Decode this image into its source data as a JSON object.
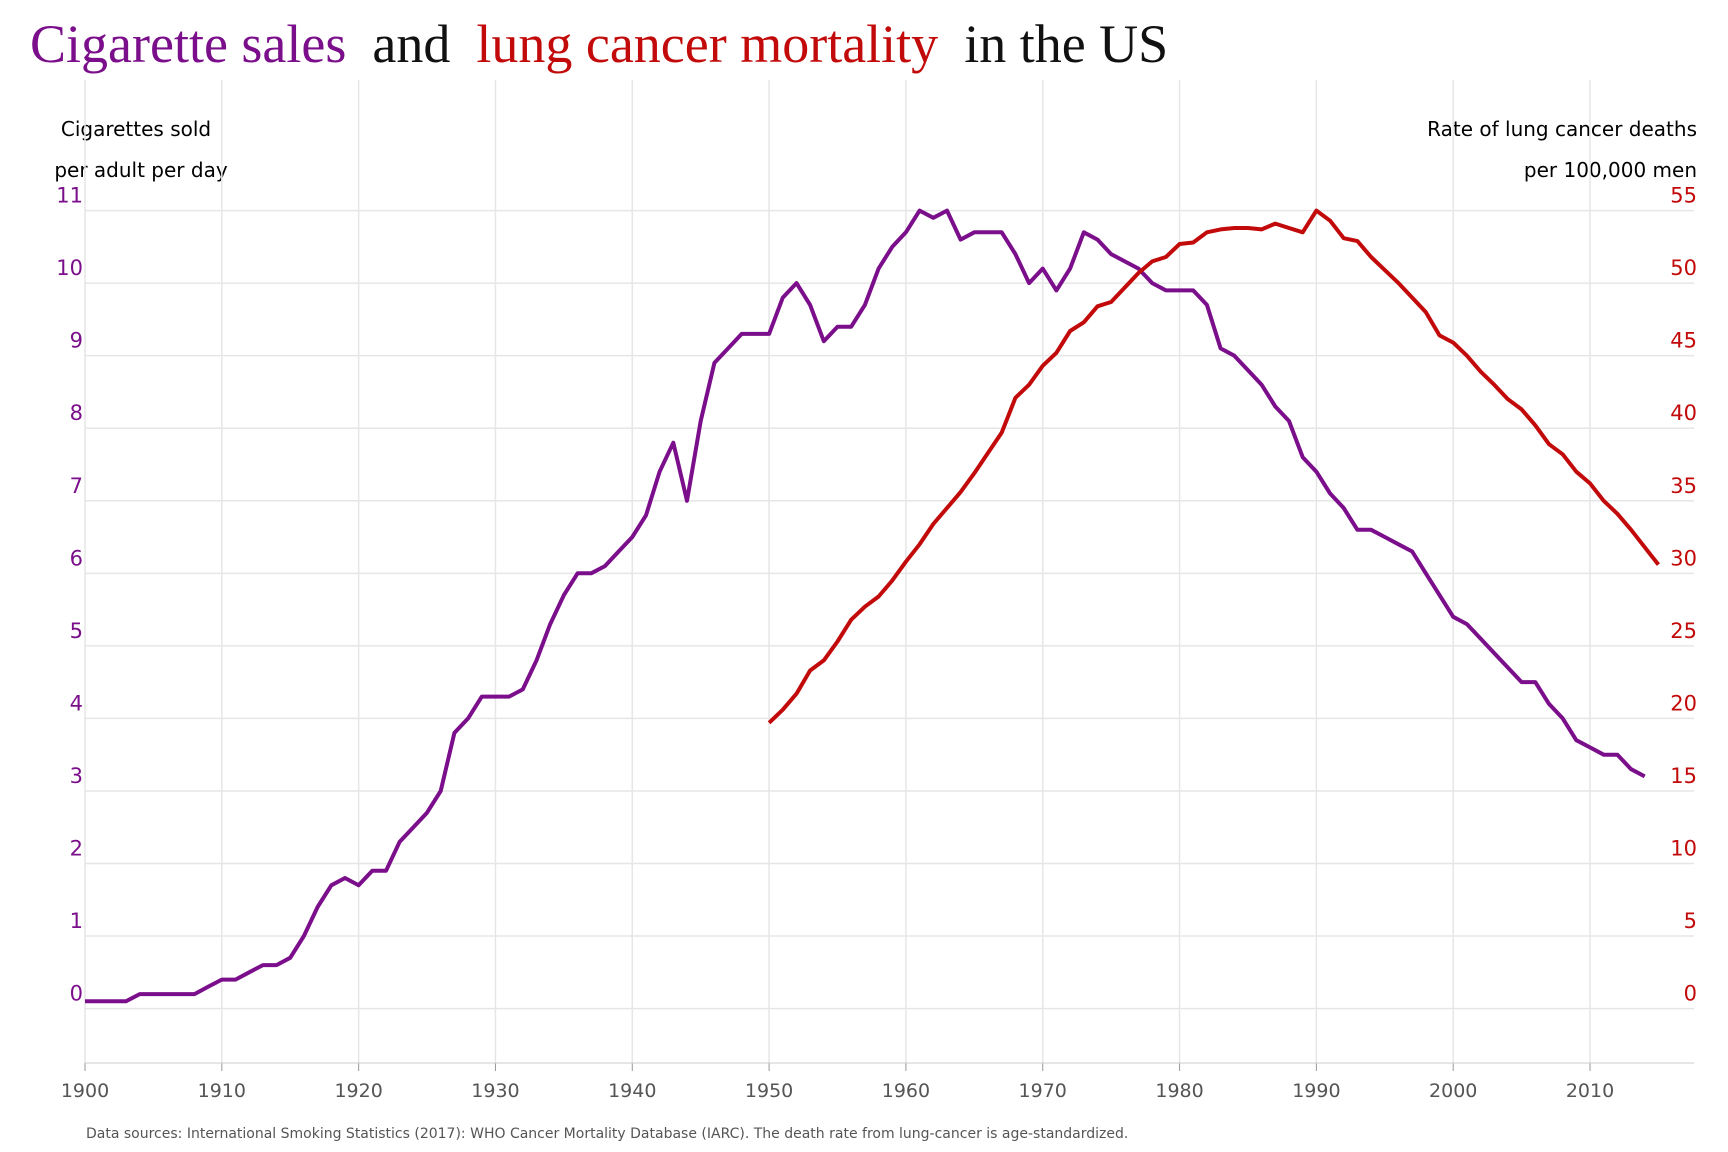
{
  "chart_data": {
    "type": "line",
    "title_parts": [
      {
        "text": "Cigarette sales",
        "color": "#7b0e8a"
      },
      {
        "text": "and",
        "color": "#111111"
      },
      {
        "text": "lung cancer mortality",
        "color": "#c20a0a"
      },
      {
        "text": "in the US",
        "color": "#111111"
      }
    ],
    "y_label": [
      "Cigarettes sold",
      "per adult per day"
    ],
    "y2_label": [
      "Rate of lung cancer deaths",
      "per 100,000 men"
    ],
    "note": "Data sources: International Smoking Statistics (2017): WHO Cancer Mortality Database (IARC). The death rate from lung-cancer is age-standardized.",
    "xlim": [
      1900,
      2017.6
    ],
    "xticks": [
      1900,
      1910,
      1920,
      1930,
      1940,
      1950,
      1960,
      1970,
      1980,
      1990,
      2000,
      2010
    ],
    "ylim": [
      -0.75,
      12.8
    ],
    "yticks": [
      0,
      1,
      2,
      3,
      4,
      5,
      6,
      7,
      8,
      9,
      10,
      11
    ],
    "y2lim": [
      -3.75,
      64
    ],
    "y2ticks": [
      0,
      5,
      10,
      15,
      20,
      25,
      30,
      35,
      40,
      45,
      50,
      55
    ],
    "grid": true,
    "series": [
      {
        "name": "Cigarette sales",
        "color": "#7b0e8a",
        "axis": "y",
        "x": [
          1900,
          1901,
          1902,
          1903,
          1904,
          1905,
          1906,
          1907,
          1908,
          1909,
          1910,
          1911,
          1912,
          1913,
          1914,
          1915,
          1916,
          1917,
          1918,
          1919,
          1920,
          1921,
          1922,
          1923,
          1924,
          1925,
          1926,
          1927,
          1928,
          1929,
          1930,
          1931,
          1932,
          1933,
          1934,
          1935,
          1936,
          1937,
          1938,
          1939,
          1940,
          1941,
          1942,
          1943,
          1944,
          1945,
          1946,
          1947,
          1948,
          1949,
          1950,
          1951,
          1952,
          1953,
          1954,
          1955,
          1956,
          1957,
          1958,
          1959,
          1960,
          1961,
          1962,
          1963,
          1964,
          1965,
          1966,
          1967,
          1968,
          1969,
          1970,
          1971,
          1972,
          1973,
          1974,
          1975,
          1976,
          1977,
          1978,
          1979,
          1980,
          1981,
          1982,
          1983,
          1984,
          1985,
          1986,
          1987,
          1988,
          1989,
          1990,
          1991,
          1992,
          1993,
          1994,
          1995,
          1996,
          1997,
          1998,
          1999,
          2000,
          2001,
          2002,
          2003,
          2004,
          2005,
          2006,
          2007,
          2008,
          2009,
          2010,
          2011,
          2012,
          2013,
          2014
        ],
        "values": [
          0.1,
          0.1,
          0.1,
          0.1,
          0.2,
          0.2,
          0.2,
          0.2,
          0.2,
          0.3,
          0.4,
          0.4,
          0.5,
          0.6,
          0.6,
          0.7,
          1.0,
          1.4,
          1.7,
          1.8,
          1.7,
          1.9,
          1.9,
          2.3,
          2.5,
          2.7,
          3.0,
          3.8,
          4.0,
          4.3,
          4.3,
          4.3,
          4.4,
          4.8,
          5.3,
          5.7,
          6.0,
          6.0,
          6.1,
          6.3,
          6.5,
          6.8,
          7.4,
          7.8,
          7.0,
          8.1,
          8.9,
          9.1,
          9.3,
          9.3,
          9.3,
          9.8,
          10.0,
          9.7,
          9.2,
          9.4,
          9.4,
          9.7,
          10.2,
          10.5,
          10.7,
          11.0,
          10.9,
          11.0,
          10.6,
          10.7,
          10.7,
          10.7,
          10.4,
          10.0,
          10.2,
          9.9,
          10.2,
          10.7,
          10.6,
          10.4,
          10.3,
          10.2,
          10.0,
          9.9,
          9.9,
          9.9,
          9.7,
          9.1,
          9.0,
          8.8,
          8.6,
          8.3,
          8.1,
          7.6,
          7.4,
          7.1,
          6.9,
          6.6,
          6.6,
          6.5,
          6.4,
          6.3,
          6.0,
          5.7,
          5.4,
          5.3,
          5.1,
          4.9,
          4.7,
          4.5,
          4.5,
          4.2,
          4.0,
          3.7,
          3.6,
          3.5,
          3.5,
          3.3,
          3.2
        ]
      },
      {
        "name": "Lung cancer mortality",
        "color": "#c20a0a",
        "axis": "y2",
        "x": [
          1950,
          1951,
          1952,
          1953,
          1954,
          1955,
          1956,
          1957,
          1958,
          1959,
          1960,
          1961,
          1962,
          1963,
          1964,
          1965,
          1966,
          1967,
          1968,
          1969,
          1970,
          1971,
          1972,
          1973,
          1974,
          1975,
          1976,
          1977,
          1978,
          1979,
          1980,
          1981,
          1982,
          1983,
          1984,
          1985,
          1986,
          1987,
          1988,
          1989,
          1990,
          1991,
          1992,
          1993,
          1994,
          1995,
          1996,
          1997,
          1998,
          1999,
          2000,
          2001,
          2002,
          2003,
          2004,
          2005,
          2006,
          2007,
          2008,
          2009,
          2010,
          2011,
          2012,
          2013,
          2014,
          2015
        ],
        "values": [
          19.7,
          20.6,
          21.7,
          23.3,
          24.0,
          25.3,
          26.8,
          27.7,
          28.4,
          29.5,
          30.8,
          32.0,
          33.4,
          34.5,
          35.6,
          36.9,
          38.3,
          39.7,
          42.1,
          43.0,
          44.3,
          45.2,
          46.7,
          47.3,
          48.4,
          48.7,
          49.7,
          50.7,
          51.5,
          51.8,
          52.7,
          52.8,
          53.5,
          53.7,
          53.8,
          53.8,
          53.7,
          54.1,
          53.8,
          53.5,
          55.0,
          54.3,
          53.1,
          52.9,
          51.8,
          50.9,
          50.0,
          49.0,
          48.0,
          46.4,
          45.9,
          45.0,
          43.9,
          43.0,
          42.0,
          41.3,
          40.2,
          38.9,
          38.2,
          37.0,
          36.2,
          35.0,
          34.1,
          33.0,
          31.8,
          30.6
        ]
      }
    ]
  }
}
